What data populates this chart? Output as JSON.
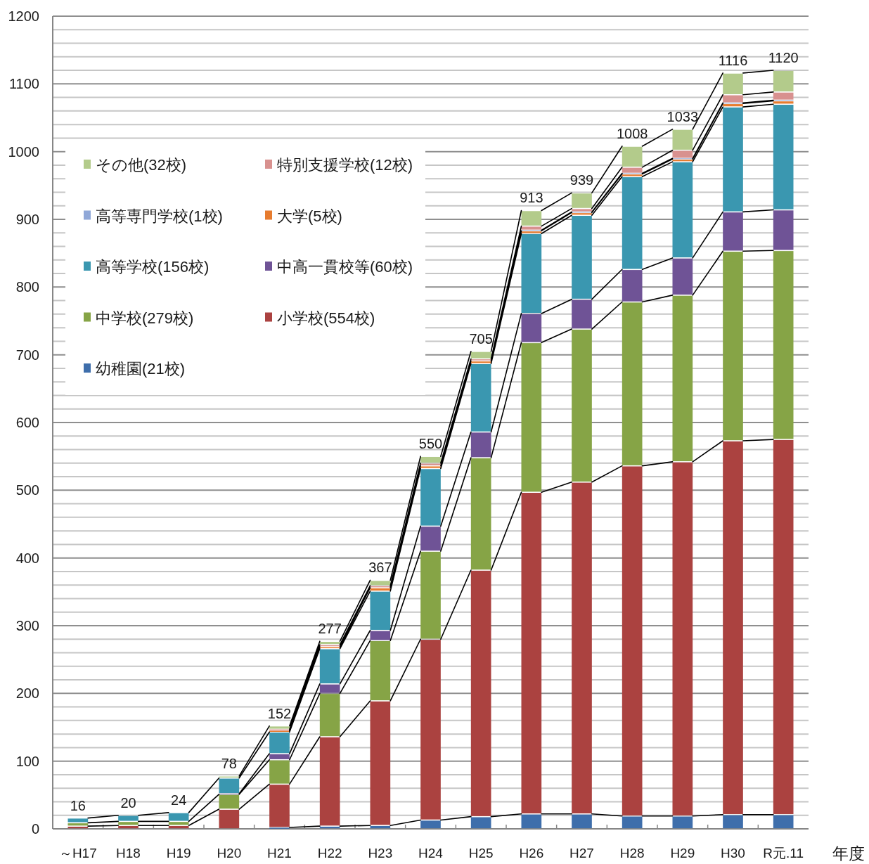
{
  "chart_data": {
    "type": "bar",
    "stacked": true,
    "xlabel": "年度",
    "categories": [
      "～H17",
      "H18",
      "H19",
      "H20",
      "H21",
      "H22",
      "H23",
      "H24",
      "H25",
      "H26",
      "H27",
      "H28",
      "H29",
      "H30",
      "R元.11"
    ],
    "series": [
      {
        "name": "幼稚園(21校)",
        "color": "#3e6eab",
        "values": [
          0,
          0,
          0,
          0,
          2,
          4,
          5,
          13,
          18,
          22,
          22,
          19,
          19,
          21,
          21
        ]
      },
      {
        "name": "小学校(554校)",
        "color": "#ab4240",
        "values": [
          4,
          5,
          5,
          29,
          64,
          132,
          184,
          267,
          364,
          475,
          490,
          517,
          523,
          552,
          554
        ]
      },
      {
        "name": "中学校(279校)",
        "color": "#86a446",
        "values": [
          5,
          6,
          6,
          22,
          36,
          64,
          89,
          130,
          166,
          221,
          226,
          242,
          246,
          280,
          279
        ]
      },
      {
        "name": "中高一貫校等(60校)",
        "color": "#6f5396",
        "values": [
          0,
          0,
          0,
          1,
          9,
          14,
          15,
          37,
          38,
          43,
          44,
          48,
          55,
          58,
          60
        ]
      },
      {
        "name": "高等学校(156校)",
        "color": "#3a97b0",
        "values": [
          7,
          9,
          13,
          23,
          32,
          52,
          58,
          85,
          101,
          118,
          124,
          137,
          142,
          155,
          156
        ]
      },
      {
        "name": "大学(5校)",
        "color": "#e77c2f",
        "values": [
          0,
          0,
          0,
          0,
          2,
          3,
          5,
          4,
          4,
          4,
          4,
          4,
          4,
          5,
          5
        ]
      },
      {
        "name": "高等専門学校(1校)",
        "color": "#90a8d8",
        "values": [
          0,
          0,
          0,
          0,
          0,
          0,
          0,
          0,
          0,
          1,
          1,
          1,
          1,
          1,
          1
        ]
      },
      {
        "name": "特別支援学校(12校)",
        "color": "#d8918f",
        "values": [
          0,
          0,
          0,
          0,
          2,
          3,
          3,
          4,
          3,
          6,
          5,
          9,
          12,
          12,
          12
        ]
      },
      {
        "name": "その他(32校)",
        "color": "#b3cb8b",
        "values": [
          0,
          0,
          0,
          3,
          5,
          5,
          8,
          10,
          11,
          23,
          23,
          31,
          31,
          32,
          32
        ]
      }
    ],
    "totals": [
      "16",
      "20",
      "24",
      "78",
      "152",
      "277",
      "367",
      "550",
      "705",
      "913",
      "939",
      "1008",
      "1033",
      "1116",
      "1120"
    ],
    "ylim": [
      0,
      1200
    ],
    "yticks": [
      0,
      {
        "value": 20,
        "label": null
      },
      {
        "value": 40,
        "label": null
      },
      {
        "value": 60,
        "label": null
      },
      {
        "value": 80,
        "label": null
      },
      100,
      {
        "value": 120,
        "label": null
      },
      {
        "value": 140,
        "label": null
      },
      {
        "value": 160,
        "label": null
      },
      {
        "value": 180,
        "label": null
      },
      200,
      {
        "value": 220,
        "label": null
      },
      {
        "value": 240,
        "label": null
      },
      {
        "value": 260,
        "label": null
      },
      {
        "value": 280,
        "label": null
      },
      300,
      {
        "value": 320,
        "label": null
      },
      {
        "value": 340,
        "label": null
      },
      {
        "value": 360,
        "label": null
      },
      {
        "value": 380,
        "label": null
      },
      400,
      {
        "value": 420,
        "label": null
      },
      {
        "value": 440,
        "label": null
      },
      {
        "value": 460,
        "label": null
      },
      {
        "value": 480,
        "label": null
      },
      500,
      {
        "value": 520,
        "label": null
      },
      {
        "value": 540,
        "label": null
      },
      {
        "value": 560,
        "label": null
      },
      {
        "value": 580,
        "label": null
      },
      600,
      {
        "value": 620,
        "label": null
      },
      {
        "value": 640,
        "label": null
      },
      {
        "value": 660,
        "label": null
      },
      {
        "value": 680,
        "label": null
      },
      700,
      {
        "value": 720,
        "label": null
      },
      {
        "value": 740,
        "label": null
      },
      {
        "value": 760,
        "label": null
      },
      {
        "value": 780,
        "label": null
      },
      800,
      {
        "value": 820,
        "label": null
      },
      {
        "value": 840,
        "label": null
      },
      {
        "value": 860,
        "label": null
      },
      {
        "value": 880,
        "label": null
      },
      900,
      {
        "value": 920,
        "label": null
      },
      {
        "value": 940,
        "label": null
      },
      {
        "value": 960,
        "label": null
      },
      {
        "value": 980,
        "label": null
      },
      1000,
      {
        "value": 1020,
        "label": null
      },
      {
        "value": 1040,
        "label": null
      },
      {
        "value": 1060,
        "label": null
      },
      {
        "value": 1080,
        "label": null
      },
      1100,
      {
        "value": 1120,
        "label": null
      },
      {
        "value": 1140,
        "label": null
      },
      {
        "value": 1160,
        "label": null
      },
      {
        "value": 1180,
        "label": null
      },
      1200
    ],
    "grid": "y",
    "legend": "top left"
  }
}
